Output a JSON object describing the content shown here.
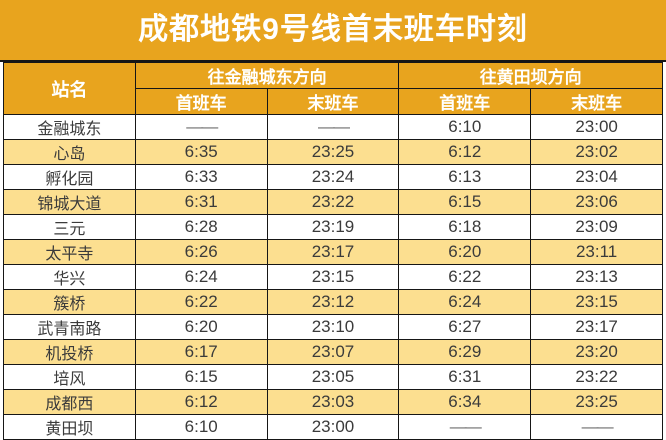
{
  "title": "成都地铁9号线首末班车时刻",
  "colors": {
    "header_orange": "#E8A41E",
    "row_yellow": "#FCDF90",
    "row_white": "#FFFFFF",
    "border_black": "#161616",
    "header_text": "#FFFFFF",
    "body_text": "#3B3B3B"
  },
  "table": {
    "station_column_header": "站名",
    "direction_headers": [
      {
        "label": "往金融城东方向"
      },
      {
        "label": "往黄田坝方向"
      }
    ],
    "sub_headers": [
      "首班车",
      "末班车",
      "首班车",
      "末班车"
    ],
    "dash": "——",
    "rows": [
      {
        "station": "金融城东",
        "times": [
          "——",
          "——",
          "6:10",
          "23:00"
        ]
      },
      {
        "station": "心岛",
        "times": [
          "6:35",
          "23:25",
          "6:12",
          "23:02"
        ]
      },
      {
        "station": "孵化园",
        "times": [
          "6:33",
          "23:24",
          "6:13",
          "23:04"
        ]
      },
      {
        "station": "锦城大道",
        "times": [
          "6:31",
          "23:22",
          "6:15",
          "23:06"
        ]
      },
      {
        "station": "三元",
        "times": [
          "6:28",
          "23:19",
          "6:18",
          "23:09"
        ]
      },
      {
        "station": "太平寺",
        "times": [
          "6:26",
          "23:17",
          "6:20",
          "23:11"
        ]
      },
      {
        "station": "华兴",
        "times": [
          "6:24",
          "23:15",
          "6:22",
          "23:13"
        ]
      },
      {
        "station": "簇桥",
        "times": [
          "6:22",
          "23:12",
          "6:24",
          "23:15"
        ]
      },
      {
        "station": "武青南路",
        "times": [
          "6:20",
          "23:10",
          "6:27",
          "23:17"
        ]
      },
      {
        "station": "机投桥",
        "times": [
          "6:17",
          "23:07",
          "6:29",
          "23:20"
        ]
      },
      {
        "station": "培风",
        "times": [
          "6:15",
          "23:05",
          "6:31",
          "23:22"
        ]
      },
      {
        "station": "成都西",
        "times": [
          "6:12",
          "23:03",
          "6:34",
          "23:25"
        ]
      },
      {
        "station": "黄田坝",
        "times": [
          "6:10",
          "23:00",
          "——",
          "——"
        ]
      }
    ]
  }
}
